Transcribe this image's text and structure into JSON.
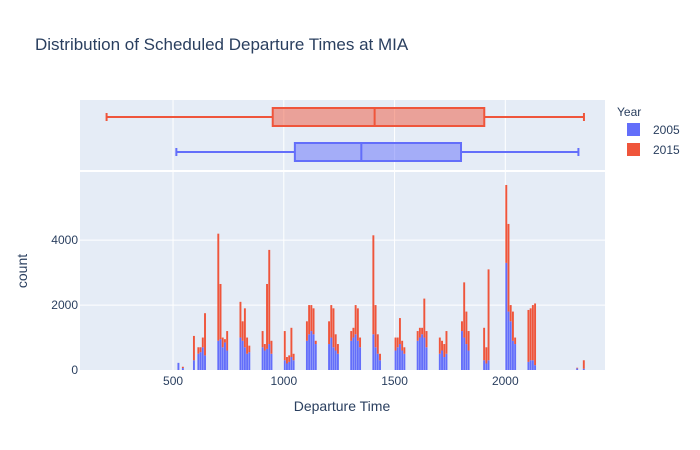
{
  "colors": {
    "2005": "#636efa",
    "2015": "#ef553b",
    "plot_bg": "#e5ecf6",
    "grid": "#ffffff"
  },
  "chart_data": {
    "type": "bar",
    "subtype": "stacked-histogram-with-marginal-box",
    "title": "Distribution of Scheduled Departure Times at MIA",
    "xlabel": "Departure Time",
    "ylabel": "count",
    "xlim": [
      80,
      2450
    ],
    "ylim": [
      0,
      6100
    ],
    "x_ticks": [
      500,
      1000,
      1500,
      2000
    ],
    "x_tick_labels": [
      "500",
      "1000",
      "1500",
      "2000"
    ],
    "y_ticks": [
      0,
      2000,
      4000
    ],
    "y_tick_labels": [
      "0",
      "2000",
      "4000"
    ],
    "bin_width": 10,
    "grid": true,
    "legend": {
      "title": "Year",
      "placement": "right",
      "entries": [
        "2005",
        "2015"
      ]
    },
    "series": [
      {
        "name": "2005",
        "bins": [
          [
            520,
            220
          ],
          [
            540,
            60
          ],
          [
            590,
            300
          ],
          [
            610,
            500
          ],
          [
            620,
            550
          ],
          [
            630,
            700
          ],
          [
            640,
            450
          ],
          [
            700,
            900
          ],
          [
            710,
            950
          ],
          [
            720,
            700
          ],
          [
            730,
            850
          ],
          [
            740,
            600
          ],
          [
            800,
            1000
          ],
          [
            810,
            900
          ],
          [
            820,
            700
          ],
          [
            830,
            500
          ],
          [
            840,
            550
          ],
          [
            900,
            700
          ],
          [
            910,
            600
          ],
          [
            920,
            650
          ],
          [
            930,
            800
          ],
          [
            940,
            500
          ],
          [
            1000,
            300
          ],
          [
            1010,
            200
          ],
          [
            1020,
            250
          ],
          [
            1030,
            400
          ],
          [
            1040,
            300
          ],
          [
            1100,
            900
          ],
          [
            1110,
            1100
          ],
          [
            1120,
            1200
          ],
          [
            1130,
            1100
          ],
          [
            1140,
            800
          ],
          [
            1200,
            800
          ],
          [
            1210,
            1000
          ],
          [
            1220,
            700
          ],
          [
            1230,
            600
          ],
          [
            1240,
            500
          ],
          [
            1300,
            900
          ],
          [
            1310,
            1000
          ],
          [
            1320,
            1100
          ],
          [
            1330,
            900
          ],
          [
            1340,
            700
          ],
          [
            1400,
            1100
          ],
          [
            1410,
            700
          ],
          [
            1420,
            500
          ],
          [
            1430,
            300
          ],
          [
            1500,
            600
          ],
          [
            1510,
            700
          ],
          [
            1520,
            800
          ],
          [
            1530,
            600
          ],
          [
            1540,
            500
          ],
          [
            1600,
            900
          ],
          [
            1610,
            1000
          ],
          [
            1620,
            1100
          ],
          [
            1630,
            1000
          ],
          [
            1640,
            700
          ],
          [
            1700,
            500
          ],
          [
            1710,
            600
          ],
          [
            1720,
            400
          ],
          [
            1730,
            500
          ],
          [
            1800,
            1200
          ],
          [
            1810,
            1000
          ],
          [
            1820,
            800
          ],
          [
            1830,
            600
          ],
          [
            1900,
            300
          ],
          [
            1910,
            200
          ],
          [
            1920,
            300
          ],
          [
            2000,
            3300
          ],
          [
            2010,
            1800
          ],
          [
            2020,
            1500
          ],
          [
            2030,
            900
          ],
          [
            2040,
            800
          ],
          [
            2100,
            250
          ],
          [
            2110,
            300
          ],
          [
            2120,
            300
          ],
          [
            2130,
            150
          ],
          [
            2320,
            50
          ],
          [
            2350,
            40
          ]
        ]
      },
      {
        "name": "2015",
        "bins": [
          [
            520,
            0
          ],
          [
            540,
            40
          ],
          [
            590,
            750
          ],
          [
            610,
            200
          ],
          [
            620,
            150
          ],
          [
            630,
            300
          ],
          [
            640,
            1300
          ],
          [
            700,
            3300
          ],
          [
            710,
            1700
          ],
          [
            720,
            300
          ],
          [
            730,
            100
          ],
          [
            740,
            600
          ],
          [
            800,
            1100
          ],
          [
            810,
            600
          ],
          [
            820,
            1200
          ],
          [
            830,
            500
          ],
          [
            840,
            200
          ],
          [
            900,
            500
          ],
          [
            910,
            200
          ],
          [
            920,
            2000
          ],
          [
            930,
            2900
          ],
          [
            940,
            400
          ],
          [
            1000,
            900
          ],
          [
            1010,
            200
          ],
          [
            1020,
            200
          ],
          [
            1030,
            900
          ],
          [
            1040,
            200
          ],
          [
            1100,
            600
          ],
          [
            1110,
            900
          ],
          [
            1120,
            800
          ],
          [
            1130,
            800
          ],
          [
            1140,
            100
          ],
          [
            1200,
            700
          ],
          [
            1210,
            1000
          ],
          [
            1220,
            1200
          ],
          [
            1230,
            500
          ],
          [
            1240,
            300
          ],
          [
            1300,
            300
          ],
          [
            1310,
            300
          ],
          [
            1320,
            900
          ],
          [
            1330,
            1000
          ],
          [
            1340,
            300
          ],
          [
            1400,
            3050
          ],
          [
            1410,
            1300
          ],
          [
            1420,
            600
          ],
          [
            1430,
            200
          ],
          [
            1500,
            400
          ],
          [
            1510,
            300
          ],
          [
            1520,
            800
          ],
          [
            1530,
            300
          ],
          [
            1540,
            200
          ],
          [
            1600,
            300
          ],
          [
            1610,
            300
          ],
          [
            1620,
            200
          ],
          [
            1630,
            1200
          ],
          [
            1640,
            500
          ],
          [
            1700,
            500
          ],
          [
            1710,
            300
          ],
          [
            1720,
            400
          ],
          [
            1730,
            700
          ],
          [
            1800,
            300
          ],
          [
            1810,
            1700
          ],
          [
            1820,
            1000
          ],
          [
            1830,
            600
          ],
          [
            1900,
            1000
          ],
          [
            1910,
            500
          ],
          [
            1920,
            2800
          ],
          [
            2000,
            2400
          ],
          [
            2010,
            2700
          ],
          [
            2020,
            500
          ],
          [
            2030,
            900
          ],
          [
            2040,
            200
          ],
          [
            2100,
            1600
          ],
          [
            2110,
            1600
          ],
          [
            2120,
            1700
          ],
          [
            2130,
            1900
          ],
          [
            2320,
            20
          ],
          [
            2350,
            260
          ]
        ]
      }
    ],
    "box": [
      {
        "name": "2015",
        "min": 200,
        "q1": 950,
        "median": 1410,
        "q3": 1905,
        "max": 2355
      },
      {
        "name": "2005",
        "min": 515,
        "q1": 1050,
        "median": 1350,
        "q3": 1800,
        "max": 2330
      }
    ]
  }
}
